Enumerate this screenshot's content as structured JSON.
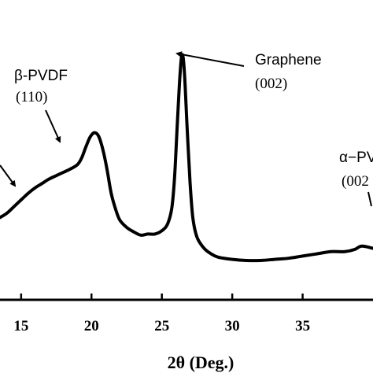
{
  "chart_data": {
    "type": "line",
    "xlabel": "2θ (Deg.)",
    "ylabel": "",
    "xlim": [
      13.5,
      40
    ],
    "xticks": [
      {
        "value": 15,
        "label": "15"
      },
      {
        "value": 20,
        "label": "20"
      },
      {
        "value": 25,
        "label": "25"
      },
      {
        "value": 30,
        "label": "30"
      },
      {
        "value": 35,
        "label": "35"
      }
    ],
    "ylim": [
      0,
      100
    ],
    "grid": false,
    "series": [
      {
        "color": "#000000",
        "points": [
          [
            13.5,
            22
          ],
          [
            14.0,
            24
          ],
          [
            14.5,
            27
          ],
          [
            15.0,
            30
          ],
          [
            15.5,
            33
          ],
          [
            16.0,
            35.5
          ],
          [
            16.5,
            37.5
          ],
          [
            17.0,
            39.5
          ],
          [
            17.5,
            41
          ],
          [
            18.0,
            42.5
          ],
          [
            18.5,
            44
          ],
          [
            19.0,
            46
          ],
          [
            19.3,
            49
          ],
          [
            19.6,
            54
          ],
          [
            19.9,
            58.5
          ],
          [
            20.2,
            60.5
          ],
          [
            20.5,
            59
          ],
          [
            20.8,
            53
          ],
          [
            21.1,
            44
          ],
          [
            21.4,
            33
          ],
          [
            21.7,
            26
          ],
          [
            22.0,
            21
          ],
          [
            22.5,
            17.5
          ],
          [
            23.0,
            15.5
          ],
          [
            23.5,
            14
          ],
          [
            24.0,
            14.5
          ],
          [
            24.5,
            14.5
          ],
          [
            25.0,
            16
          ],
          [
            25.4,
            19
          ],
          [
            25.7,
            26
          ],
          [
            25.9,
            40
          ],
          [
            26.1,
            65
          ],
          [
            26.3,
            88
          ],
          [
            26.45,
            96
          ],
          [
            26.6,
            88
          ],
          [
            26.8,
            62
          ],
          [
            27.0,
            38
          ],
          [
            27.2,
            22
          ],
          [
            27.5,
            13
          ],
          [
            28.0,
            8
          ],
          [
            28.5,
            5.5
          ],
          [
            29.0,
            4
          ],
          [
            30.0,
            3
          ],
          [
            31.0,
            2.5
          ],
          [
            32.0,
            2.5
          ],
          [
            33.0,
            3
          ],
          [
            34.0,
            3.5
          ],
          [
            35.0,
            4.5
          ],
          [
            36.0,
            5.5
          ],
          [
            37.0,
            6.5
          ],
          [
            38.0,
            6.5
          ],
          [
            38.7,
            7.5
          ],
          [
            39.2,
            9
          ],
          [
            40.0,
            8
          ]
        ]
      }
    ],
    "annotations": [
      {
        "id": "beta",
        "line1": "β-PVDF",
        "line2": "(110)"
      },
      {
        "id": "graphene",
        "line1": "Graphene",
        "line2": "(002)"
      },
      {
        "id": "alpha",
        "line1": "α−PV",
        "line2": "(002"
      }
    ]
  }
}
